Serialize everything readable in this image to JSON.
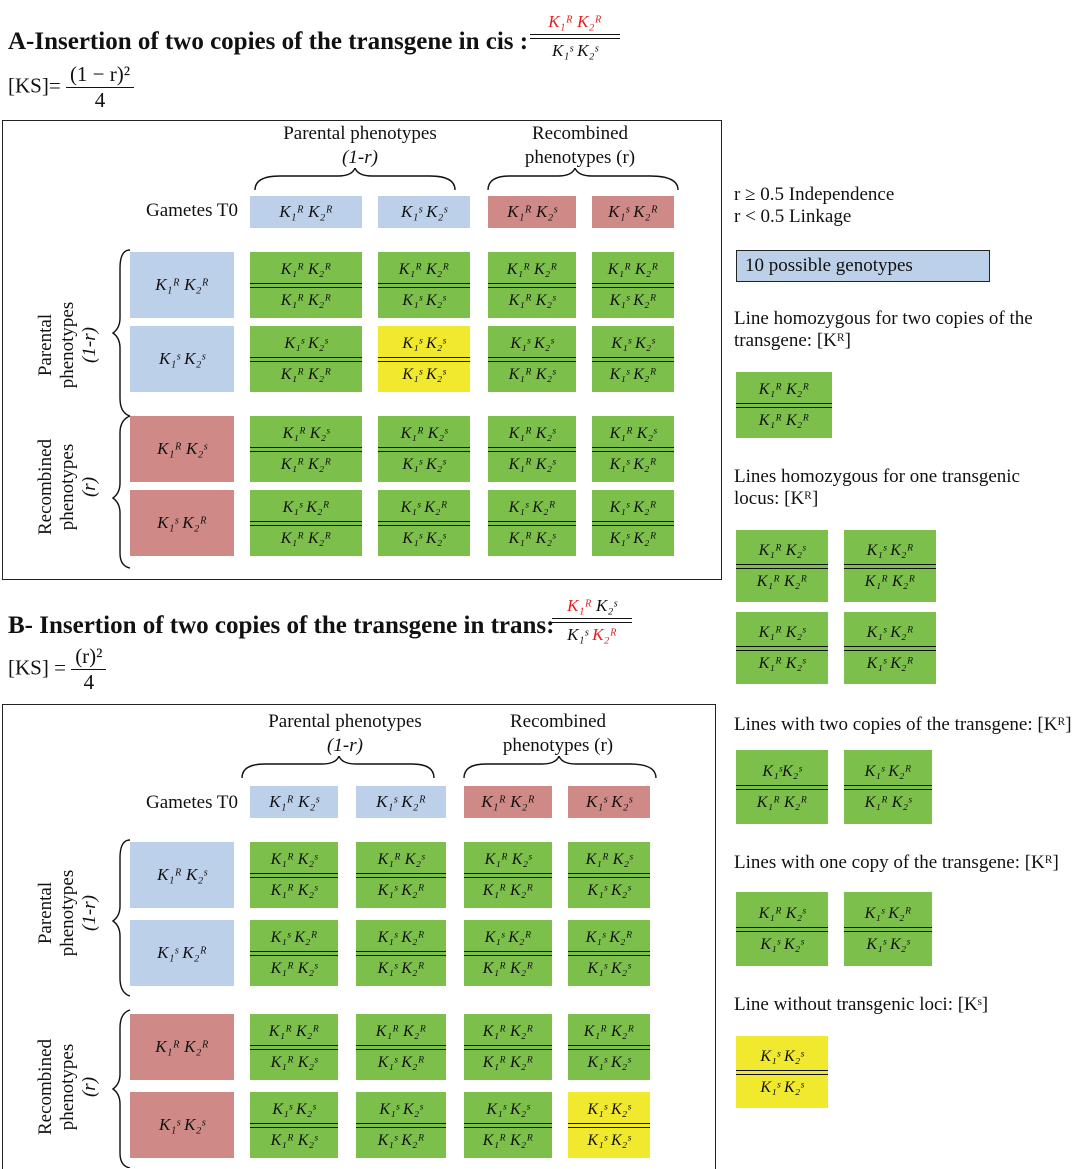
{
  "partA": {
    "title": "A-Insertion of two copies of the transgene in cis :",
    "formula_lhs": "[KS]=",
    "formula_num": "(1 − r)²",
    "formula_den": "4",
    "config_top": "K₁ᴿ K₂ᴿ",
    "config_bot": "K₁ˢ K₂ˢ",
    "hdr_parental": "Parental phenotypes",
    "hdr_parental_sub": "(1-r)",
    "hdr_recomb": "Recombined",
    "hdr_recomb_sub": "phenotypes (r)",
    "gametes_label": "Gametes T0",
    "gametes": [
      "K₁ᴿ K₂ᴿ",
      "K₁ˢ K₂ˢ",
      "K₁ᴿ K₂ˢ",
      "K₁ˢ K₂ᴿ"
    ],
    "row_labels": [
      "K₁ᴿ K₂ᴿ",
      "K₁ˢ K₂ˢ",
      "K₁ᴿ K₂ˢ",
      "K₁ˢ K₂ᴿ"
    ],
    "side_parental": [
      "Parental",
      "phenotypes",
      "(1-r)"
    ],
    "side_recomb": [
      "Recombined",
      "phenotypes",
      "(r)"
    ],
    "cells": [
      [
        [
          "K₁ᴿ K₂ᴿ",
          "K₁ᴿ K₂ᴿ"
        ],
        [
          "K₁ᴿ K₂ᴿ",
          "K₁ˢ K₂ˢ"
        ],
        [
          "K₁ᴿ K₂ᴿ",
          "K₁ᴿ K₂ˢ"
        ],
        [
          "K₁ᴿ K₂ᴿ",
          "K₁ˢ K₂ᴿ"
        ]
      ],
      [
        [
          "K₁ˢ K₂ˢ",
          "K₁ᴿ K₂ᴿ"
        ],
        [
          "K₁ˢ K₂ˢ",
          "K₁ˢ K₂ˢ"
        ],
        [
          "K₁ˢ K₂ˢ",
          "K₁ᴿ K₂ˢ"
        ],
        [
          "K₁ˢ K₂ˢ",
          "K₁ˢ K₂ᴿ"
        ]
      ],
      [
        [
          "K₁ᴿ K₂ˢ",
          "K₁ᴿ K₂ᴿ"
        ],
        [
          "K₁ᴿ K₂ˢ",
          "K₁ˢ K₂ˢ"
        ],
        [
          "K₁ᴿ K₂ˢ",
          "K₁ᴿ K₂ˢ"
        ],
        [
          "K₁ᴿ K₂ˢ",
          "K₁ˢ K₂ᴿ"
        ]
      ],
      [
        [
          "K₁ˢ K₂ᴿ",
          "K₁ᴿ K₂ᴿ"
        ],
        [
          "K₁ˢ K₂ᴿ",
          "K₁ˢ K₂ˢ"
        ],
        [
          "K₁ˢ K₂ᴿ",
          "K₁ᴿ K₂ˢ"
        ],
        [
          "K₁ˢ K₂ᴿ",
          "K₁ˢ K₂ᴿ"
        ]
      ]
    ],
    "cell_colors": [
      [
        "green",
        "green",
        "green",
        "green"
      ],
      [
        "green",
        "yellow",
        "green",
        "green"
      ],
      [
        "green",
        "green",
        "green",
        "green"
      ],
      [
        "green",
        "green",
        "green",
        "green"
      ]
    ]
  },
  "partB": {
    "title": "B- Insertion of two copies of the transgene in trans:",
    "formula_lhs": "[KS] =",
    "formula_num": "(r)²",
    "formula_den": "4",
    "config_top_a": "K₁ᴿ",
    "config_top_b": " K₂ˢ",
    "config_bot_a": "K₁ˢ ",
    "config_bot_b": "K₂ᴿ",
    "hdr_parental": "Parental phenotypes",
    "hdr_parental_sub": "(1-r)",
    "hdr_recomb": "Recombined",
    "hdr_recomb_sub": "phenotypes (r)",
    "gametes_label": "Gametes T0",
    "gametes": [
      "K₁ᴿ K₂ˢ",
      "K₁ˢ K₂ᴿ",
      "K₁ᴿ K₂ᴿ",
      "K₁ˢ K₂ˢ"
    ],
    "row_labels": [
      "K₁ᴿ K₂ˢ",
      "K₁ˢ K₂ᴿ",
      "K₁ᴿ K₂ᴿ",
      "K₁ˢ K₂ˢ"
    ],
    "side_parental": [
      "Parental",
      "phenotypes",
      "(1-r)"
    ],
    "side_recomb": [
      "Recombined",
      "phenotypes",
      "(r)"
    ],
    "cells": [
      [
        [
          "K₁ᴿ K₂ˢ",
          "K₁ᴿ K₂ˢ"
        ],
        [
          "K₁ᴿ K₂ˢ",
          "K₁ˢ K₂ᴿ"
        ],
        [
          "K₁ᴿ K₂ˢ",
          "K₁ᴿ K₂ᴿ"
        ],
        [
          "K₁ᴿ K₂ˢ",
          "K₁ˢ K₂ˢ"
        ]
      ],
      [
        [
          "K₁ˢ K₂ᴿ",
          "K₁ᴿ K₂ˢ"
        ],
        [
          "K₁ˢ K₂ᴿ",
          "K₁ˢ K₂ᴿ"
        ],
        [
          "K₁ˢ K₂ᴿ",
          "K₁ᴿ K₂ᴿ"
        ],
        [
          "K₁ˢ K₂ᴿ",
          "K₁ˢ K₂ˢ"
        ]
      ],
      [
        [
          "K₁ᴿ K₂ᴿ",
          "K₁ᴿ K₂ˢ"
        ],
        [
          "K₁ᴿ K₂ᴿ",
          "K₁ˢ K₂ᴿ"
        ],
        [
          "K₁ᴿ K₂ᴿ",
          "K₁ᴿ K₂ᴿ"
        ],
        [
          "K₁ᴿ K₂ᴿ",
          "K₁ˢ K₂ˢ"
        ]
      ],
      [
        [
          "K₁ˢ K₂ˢ",
          "K₁ᴿ K₂ˢ"
        ],
        [
          "K₁ˢ K₂ˢ",
          "K₁ˢ K₂ᴿ"
        ],
        [
          "K₁ˢ K₂ˢ",
          "K₁ᴿ K₂ᴿ"
        ],
        [
          "K₁ˢ K₂ˢ",
          "K₁ˢ K₂ˢ"
        ]
      ]
    ],
    "cell_colors": [
      [
        "green",
        "green",
        "green",
        "green"
      ],
      [
        "green",
        "green",
        "green",
        "green"
      ],
      [
        "green",
        "green",
        "green",
        "green"
      ],
      [
        "green",
        "green",
        "green",
        "yellow"
      ]
    ]
  },
  "legend": {
    "independence": "r ≥ 0.5  Independence",
    "linkage": "r < 0.5  Linkage",
    "genotypes_box": "10 possible genotypes",
    "homo_two_l1": "Line homozygous for two copies of the",
    "homo_two_l2": "transgene: [Kᴿ]",
    "homo_two_ex": [
      [
        "K₁ᴿ K₂ᴿ",
        "K₁ᴿ K₂ᴿ"
      ]
    ],
    "homo_one_l1": "Lines homozygous for one transgenic",
    "homo_one_l2": " locus: [Kᴿ]",
    "homo_one_ex": [
      [
        "K₁ᴿ K₂ˢ",
        "K₁ᴿ K₂ᴿ"
      ],
      [
        "K₁ˢ K₂ᴿ",
        "K₁ᴿ K₂ᴿ"
      ],
      [
        "K₁ᴿ K₂ˢ",
        "K₁ᴿ K₂ˢ"
      ],
      [
        "K₁ˢ K₂ᴿ",
        "K₁ˢ K₂ᴿ"
      ]
    ],
    "two_copies": "Lines with two copies of the transgene: [Kᴿ]",
    "two_copies_ex": [
      [
        "K₁ˢK₂ˢ",
        "K₁ᴿ K₂ᴿ"
      ],
      [
        "K₁ˢ K₂ᴿ",
        "K₁ᴿ K₂ˢ"
      ]
    ],
    "one_copy": "Lines with one copy of the transgene: [Kᴿ]",
    "one_copy_ex": [
      [
        "K₁ᴿ K₂ˢ",
        "K₁ˢ K₂ˢ"
      ],
      [
        "K₁ˢ K₂ᴿ",
        "K₁ˢ K₂ˢ"
      ]
    ],
    "no_loci": "Line without transgenic loci: [Kˢ]",
    "no_loci_ex": [
      [
        "K₁ˢ K₂ˢ",
        "K₁ˢ K₂ˢ"
      ]
    ],
    "colors": {
      "green": "#7cc04b",
      "yellow": "#f0e92e",
      "blue": "#bcd0e9",
      "rose": "#cf8a87"
    }
  }
}
